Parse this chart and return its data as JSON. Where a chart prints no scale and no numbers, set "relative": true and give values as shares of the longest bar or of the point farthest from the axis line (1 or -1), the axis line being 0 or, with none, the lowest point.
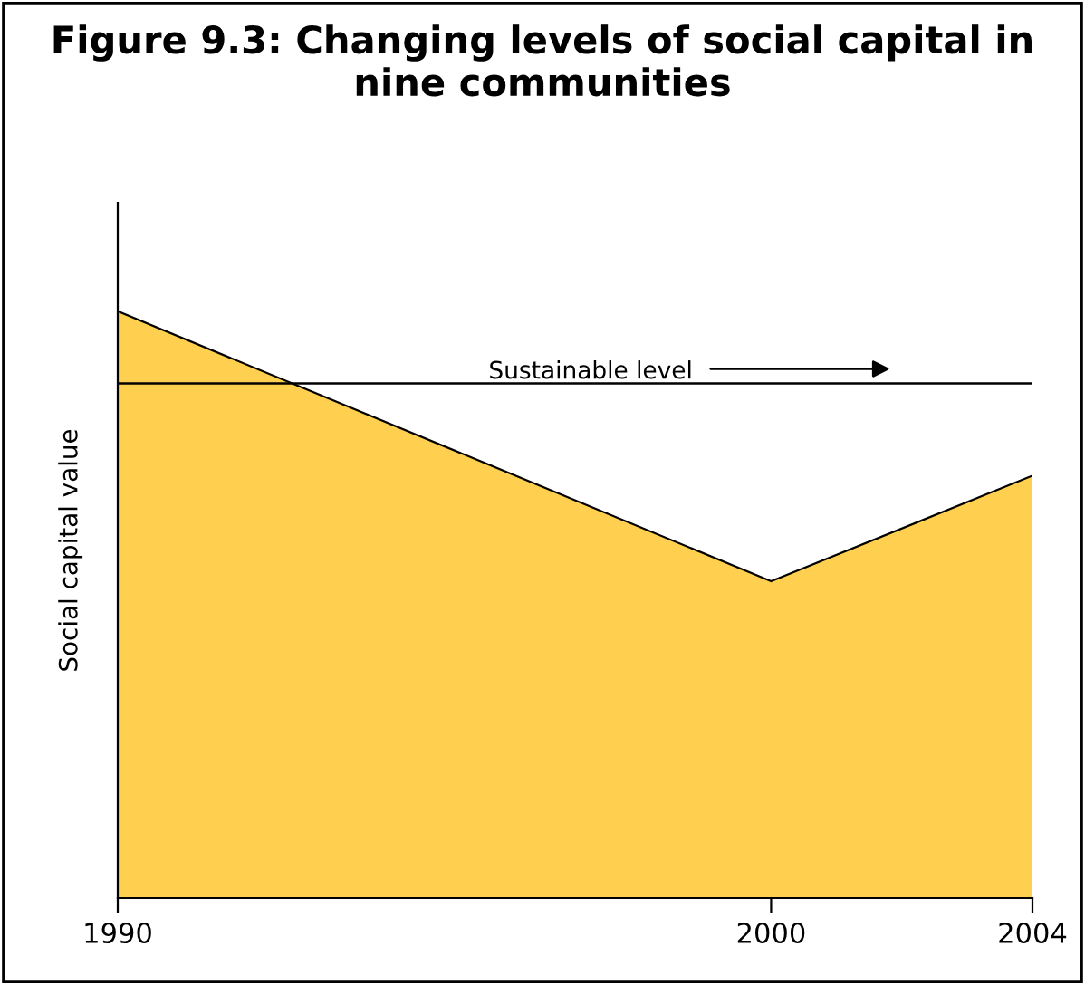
{
  "chart_data": {
    "type": "area",
    "title": "Figure 9.3: Changing levels of social capital in nine communities",
    "ylabel": "Social capital value",
    "x": [
      1990,
      2000,
      2004
    ],
    "xlim": [
      1990,
      2004
    ],
    "xticks": [
      1990,
      2000,
      2004
    ],
    "relative": true,
    "series": [
      {
        "color": "#ffd04f",
        "values": [
          1,
          0.54,
          0.72
        ]
      }
    ],
    "ref_lines": [
      {
        "axis": "y",
        "value": 0.877,
        "label": "Sustainable level",
        "color": "#000000"
      }
    ],
    "grid": false,
    "legend": false
  }
}
